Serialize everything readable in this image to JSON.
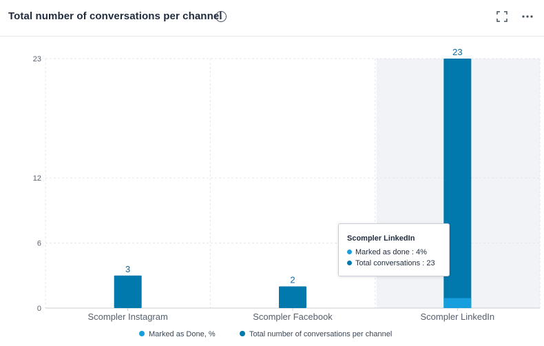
{
  "header": {
    "title": "Total number of conversations per channel",
    "info_icon": "info-icon",
    "expand_icon": "expand-icon",
    "more_icon": "more-icon"
  },
  "chart_data": {
    "type": "bar",
    "title": "Total number of conversations per channel",
    "categories": [
      "Scompler Instagram",
      "Scompler Facebook",
      "Scompler LinkedIn"
    ],
    "series": [
      {
        "name": "Total number of conversations per channel",
        "values": [
          3,
          2,
          23
        ],
        "color": "#0179ad"
      },
      {
        "name": "Marked as Done, %",
        "values": [
          0,
          0,
          4
        ],
        "color": "#169fdc"
      }
    ],
    "data_labels": [
      "3",
      "2",
      "23"
    ],
    "yticks": [
      0,
      6,
      12,
      23
    ],
    "ylim": [
      0,
      23
    ],
    "grid": true,
    "highlighted_category": "Scompler LinkedIn",
    "legend_position": "bottom"
  },
  "tooltip": {
    "title": "Scompler LinkedIn",
    "rows": [
      {
        "label": "Marked as done : 4%",
        "color": "#169fdc"
      },
      {
        "label": "Total conversations : 23",
        "color": "#0179ad"
      }
    ]
  },
  "legend": {
    "items": [
      {
        "label": "Marked as Done, %",
        "color": "#169fdc"
      },
      {
        "label": "Total number of conversations per channel",
        "color": "#0179ad"
      }
    ]
  },
  "colors": {
    "highlight_band": "#f2f3f6",
    "axis_text": "#555f6d",
    "grid": "#e3e6ea"
  }
}
